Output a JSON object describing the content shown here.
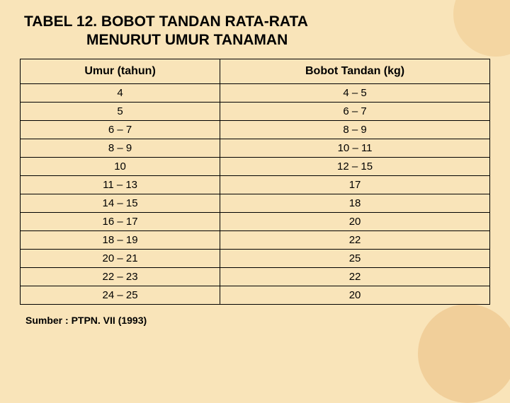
{
  "title_line1": "TABEL 12. BOBOT TANDAN RATA-RATA",
  "title_line2": "MENURUT UMUR TANAMAN",
  "table": {
    "type": "table",
    "background_color": "#f9e4b9",
    "border_color": "#000000",
    "header_fontsize": 16,
    "cell_fontsize": 15,
    "font_family": "Arial",
    "columns": [
      "Umur (tahun)",
      "Bobot Tandan (kg)"
    ],
    "column_widths": [
      "50%",
      "50%"
    ],
    "alignment": [
      "center",
      "center"
    ],
    "rows": [
      [
        "4",
        "4 – 5"
      ],
      [
        "5",
        "6 – 7"
      ],
      [
        "6 – 7",
        "8 – 9"
      ],
      [
        "8 – 9",
        "10 – 11"
      ],
      [
        "10",
        "12 – 15"
      ],
      [
        "11 – 13",
        "17"
      ],
      [
        "14 – 15",
        "18"
      ],
      [
        "16 – 17",
        "20"
      ],
      [
        "18 – 19",
        "22"
      ],
      [
        "20 – 21",
        "25"
      ],
      [
        "22 – 23",
        "22"
      ],
      [
        "24 – 25",
        "20"
      ]
    ]
  },
  "source": "Sumber : PTPN. VII (1993)",
  "colors": {
    "background": "#f9e4b9",
    "text": "#000000",
    "border": "#000000",
    "accent_circle": "#efc98a"
  }
}
